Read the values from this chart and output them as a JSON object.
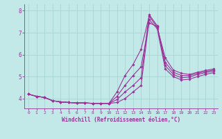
{
  "xlabel": "Windchill (Refroidissement éolien,°C)",
  "bg_color": "#c2e8e8",
  "grid_color": "#a8d4d4",
  "line_color": "#993399",
  "xlim": [
    -0.5,
    23.5
  ],
  "ylim": [
    3.55,
    8.3
  ],
  "yticks": [
    4,
    5,
    6,
    7,
    8
  ],
  "xticks": [
    0,
    1,
    2,
    3,
    4,
    5,
    6,
    7,
    8,
    9,
    10,
    11,
    12,
    13,
    14,
    15,
    16,
    17,
    18,
    19,
    20,
    21,
    22,
    23
  ],
  "series": [
    [
      4.2,
      4.1,
      4.05,
      3.9,
      3.85,
      3.82,
      3.8,
      3.8,
      3.78,
      3.78,
      3.78,
      4.3,
      5.05,
      5.55,
      6.25,
      7.75,
      7.25,
      5.85,
      5.3,
      5.15,
      5.1,
      5.2,
      5.28,
      5.35
    ],
    [
      4.2,
      4.1,
      4.05,
      3.9,
      3.85,
      3.82,
      3.8,
      3.8,
      3.78,
      3.78,
      3.78,
      4.1,
      4.6,
      5.05,
      5.45,
      7.45,
      7.28,
      5.65,
      5.2,
      5.05,
      5.05,
      5.15,
      5.23,
      5.3
    ],
    [
      4.2,
      4.1,
      4.05,
      3.9,
      3.85,
      3.82,
      3.8,
      3.8,
      3.78,
      3.78,
      3.78,
      3.95,
      4.3,
      4.6,
      4.95,
      7.82,
      7.32,
      5.5,
      5.1,
      4.95,
      4.98,
      5.1,
      5.18,
      5.25
    ],
    [
      4.2,
      4.1,
      4.05,
      3.9,
      3.85,
      3.82,
      3.8,
      3.8,
      3.78,
      3.78,
      3.78,
      3.82,
      4.0,
      4.3,
      4.6,
      7.6,
      7.18,
      5.35,
      5.0,
      4.85,
      4.88,
      5.0,
      5.1,
      5.18
    ]
  ]
}
